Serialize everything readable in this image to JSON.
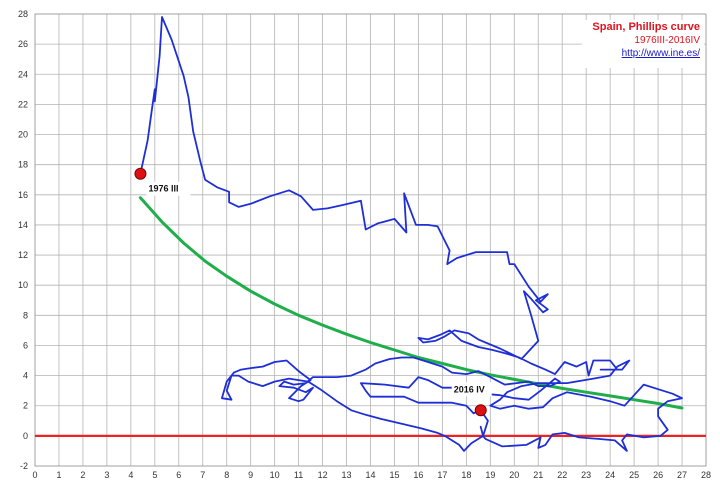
{
  "chart_data": {
    "type": "line",
    "title": "Spain, Phillips curve",
    "subtitle": "1976III-2016IV",
    "source": "http://www.ine.es/",
    "xlim": [
      0,
      28
    ],
    "ylim": [
      -2,
      28
    ],
    "xticks": [
      0,
      1,
      2,
      3,
      4,
      5,
      6,
      7,
      8,
      9,
      10,
      11,
      12,
      13,
      14,
      15,
      16,
      17,
      18,
      19,
      20,
      21,
      22,
      23,
      24,
      25,
      26,
      27,
      28
    ],
    "yticks": [
      -2,
      0,
      2,
      4,
      6,
      8,
      10,
      12,
      14,
      16,
      18,
      20,
      22,
      24,
      26,
      28
    ],
    "grid": true,
    "colors": {
      "path": "#1f2fd6",
      "trend": "#1fae4a",
      "zero": "#ee2222",
      "marker": "#dd1111",
      "grid": "#b4b4b4"
    },
    "series": [
      {
        "points": [
          [
            4.4,
            17.4
          ],
          [
            4.7,
            19.6
          ],
          [
            4.9,
            21.9
          ],
          [
            5.0,
            23.0
          ],
          [
            5.0,
            22.2
          ],
          [
            5.2,
            25.2
          ],
          [
            5.3,
            27.8
          ],
          [
            5.7,
            26.3
          ],
          [
            6.2,
            23.9
          ],
          [
            6.4,
            22.5
          ],
          [
            6.6,
            20.2
          ],
          [
            6.9,
            18.2
          ],
          [
            7.1,
            17.0
          ],
          [
            7.6,
            16.5
          ],
          [
            8.1,
            16.2
          ],
          [
            8.1,
            15.5
          ],
          [
            8.5,
            15.2
          ],
          [
            9.0,
            15.4
          ],
          [
            9.8,
            15.9
          ],
          [
            10.6,
            16.3
          ],
          [
            11.1,
            15.9
          ],
          [
            11.6,
            15.0
          ],
          [
            12.2,
            15.1
          ],
          [
            12.8,
            15.3
          ],
          [
            13.6,
            15.6
          ],
          [
            13.8,
            13.7
          ],
          [
            14.3,
            14.1
          ],
          [
            15.0,
            14.4
          ],
          [
            15.5,
            13.5
          ],
          [
            15.4,
            16.1
          ],
          [
            15.9,
            14.0
          ],
          [
            16.4,
            14.0
          ],
          [
            16.8,
            13.9
          ],
          [
            17.3,
            12.3
          ],
          [
            17.2,
            11.4
          ],
          [
            17.6,
            11.8
          ],
          [
            18.4,
            12.2
          ],
          [
            19.1,
            12.2
          ],
          [
            19.7,
            12.2
          ],
          [
            19.8,
            11.4
          ],
          [
            20.0,
            11.4
          ],
          [
            20.6,
            9.9
          ],
          [
            21.1,
            8.9
          ],
          [
            21.4,
            9.4
          ],
          [
            20.9,
            9.0
          ],
          [
            21.4,
            8.4
          ],
          [
            21.2,
            8.2
          ],
          [
            20.7,
            9.1
          ],
          [
            20.4,
            9.6
          ],
          [
            20.7,
            8.0
          ],
          [
            21.0,
            6.3
          ],
          [
            20.3,
            5.1
          ],
          [
            19.4,
            5.8
          ],
          [
            18.8,
            6.2
          ],
          [
            18.5,
            6.4
          ],
          [
            18.1,
            6.8
          ],
          [
            17.5,
            7.0
          ],
          [
            17.1,
            6.6
          ],
          [
            16.7,
            6.3
          ],
          [
            16.2,
            6.2
          ],
          [
            16.0,
            6.5
          ],
          [
            16.4,
            6.4
          ],
          [
            16.9,
            6.7
          ],
          [
            17.3,
            7.0
          ],
          [
            17.8,
            6.3
          ],
          [
            18.5,
            5.9
          ],
          [
            19.1,
            5.7
          ],
          [
            19.8,
            5.4
          ],
          [
            20.2,
            5.2
          ],
          [
            20.7,
            4.8
          ],
          [
            21.3,
            4.4
          ],
          [
            21.7,
            4.1
          ],
          [
            22.1,
            4.9
          ],
          [
            22.6,
            4.6
          ],
          [
            23.0,
            4.9
          ],
          [
            23.1,
            4.0
          ],
          [
            23.3,
            5.0
          ],
          [
            24.0,
            5.0
          ],
          [
            24.3,
            4.4
          ],
          [
            23.6,
            4.4
          ],
          [
            23.9,
            4.4
          ],
          [
            24.5,
            4.4
          ],
          [
            24.8,
            5.0
          ],
          [
            24.3,
            4.6
          ],
          [
            24.0,
            4.0
          ],
          [
            23.3,
            3.8
          ],
          [
            22.2,
            3.5
          ],
          [
            21.5,
            3.5
          ],
          [
            21.0,
            3.5
          ],
          [
            20.3,
            3.3
          ],
          [
            19.7,
            2.9
          ],
          [
            19.4,
            2.4
          ],
          [
            19.0,
            2.0
          ],
          [
            19.4,
            1.8
          ],
          [
            20.0,
            2.0
          ],
          [
            20.6,
            1.8
          ],
          [
            21.2,
            1.9
          ],
          [
            21.6,
            2.5
          ],
          [
            22.2,
            2.9
          ],
          [
            23.2,
            2.6
          ],
          [
            24.0,
            2.3
          ],
          [
            24.6,
            2.0
          ],
          [
            25.0,
            2.7
          ],
          [
            25.4,
            3.4
          ],
          [
            26.0,
            3.1
          ],
          [
            26.6,
            2.8
          ],
          [
            27.0,
            2.5
          ],
          [
            26.4,
            2.3
          ],
          [
            26.0,
            1.8
          ],
          [
            26.0,
            1.3
          ],
          [
            26.4,
            0.4
          ],
          [
            26.1,
            0.0
          ],
          [
            25.4,
            -0.1
          ],
          [
            24.7,
            0.1
          ],
          [
            24.5,
            -0.3
          ],
          [
            24.7,
            -1.0
          ],
          [
            24.2,
            -0.3
          ],
          [
            23.5,
            -0.2
          ],
          [
            22.7,
            -0.1
          ],
          [
            22.1,
            0.2
          ],
          [
            21.6,
            0.1
          ],
          [
            21.3,
            -0.6
          ],
          [
            21.0,
            -0.8
          ],
          [
            21.1,
            -0.1
          ],
          [
            20.5,
            -0.6
          ],
          [
            19.5,
            -0.7
          ],
          [
            18.8,
            -0.2
          ],
          [
            18.7,
            0.0
          ],
          [
            18.9,
            1.0
          ],
          [
            18.6,
            1.7
          ],
          [
            18.3,
            1.5
          ],
          [
            18.0,
            2.0
          ],
          [
            17.4,
            2.2
          ],
          [
            16.8,
            2.2
          ],
          [
            16.0,
            2.2
          ],
          [
            15.4,
            2.6
          ],
          [
            14.5,
            2.6
          ],
          [
            14.0,
            2.6
          ],
          [
            13.8,
            3.0
          ],
          [
            13.6,
            3.5
          ],
          [
            14.6,
            3.4
          ],
          [
            15.6,
            3.2
          ],
          [
            16.0,
            3.9
          ],
          [
            16.4,
            3.7
          ],
          [
            17.0,
            3.2
          ],
          [
            17.5,
            3.2
          ],
          [
            18.1,
            2.9
          ],
          [
            18.7,
            2.8
          ],
          [
            19.4,
            2.7
          ],
          [
            20.0,
            2.5
          ],
          [
            20.6,
            2.4
          ],
          [
            21.1,
            3.0
          ],
          [
            21.7,
            3.8
          ],
          [
            21.9,
            3.6
          ],
          [
            21.5,
            3.3
          ],
          [
            21.0,
            3.3
          ],
          [
            20.6,
            3.6
          ],
          [
            20.1,
            3.5
          ],
          [
            19.6,
            3.4
          ],
          [
            19.0,
            3.9
          ],
          [
            18.5,
            4.3
          ],
          [
            18.0,
            4.1
          ],
          [
            17.4,
            4.2
          ],
          [
            17.0,
            4.6
          ],
          [
            16.4,
            4.9
          ],
          [
            15.8,
            5.2
          ],
          [
            15.3,
            5.2
          ],
          [
            14.8,
            5.1
          ],
          [
            14.2,
            4.8
          ],
          [
            13.8,
            4.4
          ],
          [
            13.2,
            4.0
          ],
          [
            12.6,
            3.9
          ],
          [
            12.0,
            3.9
          ],
          [
            11.6,
            3.9
          ],
          [
            11.3,
            3.5
          ],
          [
            10.8,
            3.4
          ],
          [
            10.4,
            3.6
          ],
          [
            10.2,
            3.3
          ],
          [
            10.8,
            3.2
          ],
          [
            11.3,
            2.9
          ],
          [
            11.6,
            3.2
          ],
          [
            11.2,
            2.4
          ],
          [
            11.0,
            2.3
          ],
          [
            10.6,
            2.5
          ],
          [
            11.1,
            3.3
          ],
          [
            11.5,
            3.7
          ],
          [
            11.0,
            4.3
          ],
          [
            10.5,
            5.0
          ],
          [
            10.0,
            4.9
          ],
          [
            9.5,
            4.6
          ],
          [
            9.0,
            4.5
          ],
          [
            8.6,
            4.4
          ],
          [
            8.3,
            4.2
          ],
          [
            8.0,
            3.6
          ],
          [
            7.8,
            2.5
          ],
          [
            8.2,
            2.4
          ],
          [
            8.0,
            3.0
          ],
          [
            8.2,
            4.0
          ],
          [
            8.5,
            4.0
          ],
          [
            8.9,
            3.6
          ],
          [
            9.5,
            3.3
          ],
          [
            10.0,
            3.6
          ],
          [
            10.6,
            3.8
          ],
          [
            11.4,
            3.6
          ],
          [
            11.9,
            3.1
          ],
          [
            12.6,
            2.3
          ],
          [
            13.2,
            1.7
          ],
          [
            13.8,
            1.4
          ],
          [
            14.5,
            1.1
          ],
          [
            15.3,
            0.8
          ],
          [
            16.1,
            0.5
          ],
          [
            16.8,
            0.2
          ],
          [
            17.1,
            0.0
          ],
          [
            17.7,
            -0.6
          ],
          [
            17.9,
            -1.0
          ],
          [
            18.2,
            -0.5
          ],
          [
            18.7,
            0.0
          ],
          [
            18.6,
            0.6
          ]
        ]
      },
      {
        "points": [
          [
            4.4,
            15.8
          ],
          [
            5.3,
            14.2
          ],
          [
            6.2,
            12.8
          ],
          [
            7.1,
            11.6
          ],
          [
            8.0,
            10.6
          ],
          [
            9.0,
            9.6
          ],
          [
            10.0,
            8.75
          ],
          [
            11.0,
            8.0
          ],
          [
            12.0,
            7.35
          ],
          [
            13.0,
            6.75
          ],
          [
            14.0,
            6.2
          ],
          [
            15.0,
            5.7
          ],
          [
            16.0,
            5.2
          ],
          [
            17.0,
            4.8
          ],
          [
            18.0,
            4.4
          ],
          [
            19.0,
            4.05
          ],
          [
            20.0,
            3.75
          ],
          [
            21.0,
            3.45
          ],
          [
            22.0,
            3.15
          ],
          [
            23.0,
            2.9
          ],
          [
            24.0,
            2.65
          ],
          [
            25.0,
            2.4
          ],
          [
            26.0,
            2.15
          ],
          [
            27.0,
            1.85
          ]
        ]
      }
    ],
    "zero_line": [
      [
        0,
        0
      ],
      [
        28,
        0
      ]
    ],
    "annotations": [
      {
        "label": "1976 III",
        "x": 4.4,
        "y": 17.4
      },
      {
        "label": "2016 IV",
        "x": 18.6,
        "y": 1.7
      }
    ]
  }
}
